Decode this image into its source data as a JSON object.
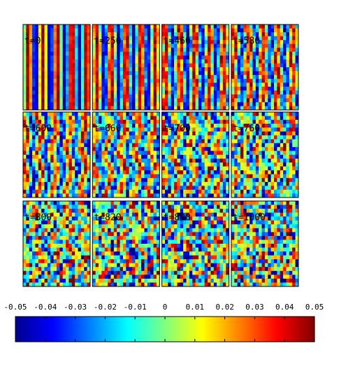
{
  "chart_data": {
    "type": "heatmap-panels",
    "panels": [
      "t=0",
      "t=250",
      "t=460",
      "t=580",
      "t=600",
      "t=660",
      "t=700",
      "t=760",
      "t=800",
      "t=820",
      "t=890",
      "t=1000"
    ],
    "colorbar_lim": [
      -0.05,
      0.05
    ],
    "colorbar_ticks": [
      -0.05,
      -0.04,
      -0.03,
      -0.02,
      -0.01,
      0,
      0.01,
      0.02,
      0.03,
      0.04,
      0.05
    ]
  }
}
